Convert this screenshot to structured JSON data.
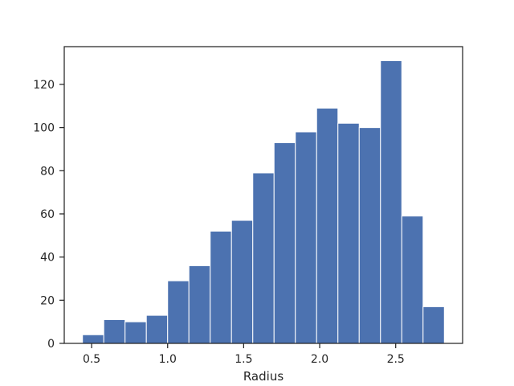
{
  "chart_data": {
    "type": "bar",
    "subtype": "histogram",
    "title": "",
    "xlabel": "Radius",
    "ylabel": "",
    "bin_edges": [
      0.44,
      0.58,
      0.72,
      0.86,
      1.0,
      1.14,
      1.28,
      1.42,
      1.56,
      1.7,
      1.84,
      1.98,
      2.12,
      2.26,
      2.4,
      2.54,
      2.68,
      2.82
    ],
    "values": [
      4,
      11,
      10,
      13,
      29,
      36,
      52,
      57,
      79,
      93,
      98,
      109,
      102,
      100,
      131,
      59,
      17
    ],
    "xlim": [
      0.32,
      2.94
    ],
    "ylim": [
      0,
      137.5
    ],
    "xticks": [
      0.5,
      1.0,
      1.5,
      2.0,
      2.5
    ],
    "xtick_labels": [
      "0.5",
      "1.0",
      "1.5",
      "2.0",
      "2.5"
    ],
    "yticks": [
      0,
      20,
      40,
      60,
      80,
      100,
      120
    ],
    "ytick_labels": [
      "0",
      "20",
      "40",
      "60",
      "80",
      "100",
      "120"
    ],
    "grid": false,
    "legend": "none",
    "colors": {
      "bar": "#4c72b0",
      "bar_edge": "#ffffff",
      "axes": "#262626"
    }
  }
}
